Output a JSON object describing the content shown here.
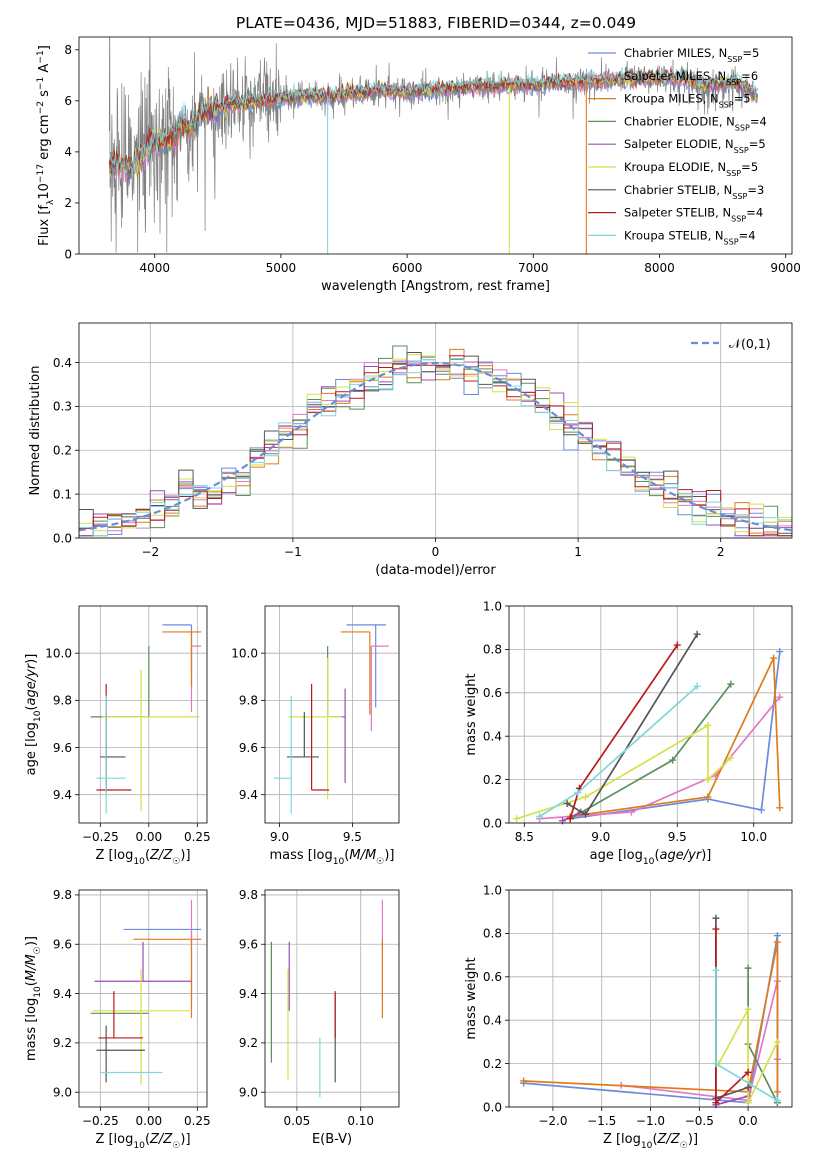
{
  "title": "PLATE=0436, MJD=51883, FIBERID=0344, z=0.049",
  "colors": {
    "Chabrier MILES": "#6a8ddb",
    "Salpeter MILES": "#e377c2",
    "Kroupa MILES": "#e07b1a",
    "Chabrier ELODIE": "#5a8f5a",
    "Salpeter ELODIE": "#9b4db5",
    "Kroupa ELODIE": "#d6e04a",
    "Chabrier STELIB": "#555555",
    "Salpeter STELIB": "#b81c1c",
    "Kroupa STELIB": "#7fd8dc"
  },
  "legend_spectrum": [
    {
      "model": "Chabrier MILES",
      "nssp": "5"
    },
    {
      "model": "Salpeter MILES",
      "nssp": "6"
    },
    {
      "model": "Kroupa MILES",
      "nssp": "5"
    },
    {
      "model": "Chabrier ELODIE",
      "nssp": "4"
    },
    {
      "model": "Salpeter ELODIE",
      "nssp": "5"
    },
    {
      "model": "Kroupa ELODIE",
      "nssp": "5"
    },
    {
      "model": "Chabrier STELIB",
      "nssp": "3"
    },
    {
      "model": "Salpeter STELIB",
      "nssp": "4"
    },
    {
      "model": "Kroupa STELIB",
      "nssp": "4"
    }
  ],
  "chart_data": [
    {
      "id": "spectrum",
      "type": "line",
      "xlabel": "wavelength [Angstrom, rest frame]",
      "ylabel": "Flux [f_λ10^-17 erg cm^-2 s^-1 A^-1]",
      "xlim": [
        3400,
        9050
      ],
      "ylim": [
        0,
        8.5
      ],
      "xticks": [
        4000,
        5000,
        6000,
        7000,
        8000,
        9000
      ],
      "yticks": [
        0,
        2,
        4,
        6,
        8
      ],
      "data_color": "#808080",
      "continuum_knots": {
        "x": [
          3640,
          3700,
          3800,
          3900,
          4000,
          4100,
          4200,
          4300,
          4400,
          4600,
          4800,
          5000,
          5200,
          5400,
          5600,
          5800,
          6000,
          6200,
          6400,
          6600,
          6800,
          7000,
          7200,
          7400,
          7600,
          7800,
          8000,
          8200,
          8400,
          8600,
          8780
        ],
        "y": [
          3.4,
          3.6,
          3.3,
          3.9,
          4.4,
          4.4,
          5.0,
          5.0,
          5.6,
          5.8,
          6.0,
          6.1,
          6.2,
          6.15,
          6.3,
          6.4,
          6.35,
          6.45,
          6.5,
          6.55,
          6.6,
          6.65,
          6.7,
          6.75,
          6.8,
          6.85,
          6.9,
          6.85,
          6.6,
          6.75,
          6.2
        ]
      },
      "drops": [
        {
          "model": "Kroupa STELIB",
          "x": 5370
        },
        {
          "model": "Kroupa ELODIE",
          "x": 6810
        },
        {
          "model": "Kroupa MILES",
          "x": 7420
        }
      ],
      "legend": "upper right"
    },
    {
      "id": "residual-distribution",
      "type": "line",
      "xlabel": "(data-model)/error",
      "ylabel": "Normed distribution",
      "xlim": [
        -2.5,
        2.5
      ],
      "ylim": [
        0,
        0.49
      ],
      "xticks": [
        -2,
        -1,
        0,
        1,
        2
      ],
      "yticks": [
        0.0,
        0.1,
        0.2,
        0.3,
        0.4
      ],
      "grid": true,
      "reference": {
        "name": "𝒩(0,1)",
        "mean": 0,
        "sigma": 1,
        "color": "#6a8ddb"
      },
      "bin_width": 0.1,
      "legend": "upper right"
    },
    {
      "id": "age-vs-Z",
      "type": "scatter",
      "xlabel": "Z [log10(Z/Z☉)]",
      "ylabel": "age [log10(age/yr)]",
      "xlim": [
        -0.36,
        0.3
      ],
      "ylim": [
        9.28,
        10.2
      ],
      "xticks": [
        -0.25,
        0.0,
        0.25
      ],
      "yticks": [
        9.4,
        9.6,
        9.8,
        10.0
      ],
      "grid": true,
      "points": [
        {
          "model": "Chabrier MILES",
          "x": 0.22,
          "xerr": [
            0.15,
            0.0
          ],
          "y": 10.12,
          "yerr": [
            0.2,
            0.0
          ]
        },
        {
          "model": "Salpeter MILES",
          "x": 0.22,
          "xerr": [
            0.0,
            0.05
          ],
          "y": 10.03,
          "yerr": [
            0.28,
            0.0
          ]
        },
        {
          "model": "Kroupa MILES",
          "x": 0.22,
          "xerr": [
            0.15,
            0.05
          ],
          "y": 10.09,
          "yerr": [
            0.23,
            0.0
          ]
        },
        {
          "model": "Chabrier ELODIE",
          "x": 0.0,
          "xerr": [
            0.3,
            0.0
          ],
          "y": 9.73,
          "yerr": [
            0.0,
            0.3
          ]
        },
        {
          "model": "Salpeter ELODIE",
          "x": -0.05,
          "xerr": [
            0.0,
            0.0
          ],
          "y": 9.73,
          "yerr": [
            0.0,
            0.0
          ]
        },
        {
          "model": "Kroupa ELODIE",
          "x": -0.04,
          "xerr": [
            0.2,
            0.3
          ],
          "y": 9.73,
          "yerr": [
            0.4,
            0.2
          ]
        },
        {
          "model": "Chabrier STELIB",
          "x": -0.22,
          "xerr": [
            0.03,
            0.1
          ],
          "y": 9.56,
          "yerr": [
            0.15,
            0.19
          ]
        },
        {
          "model": "Salpeter STELIB",
          "x": -0.22,
          "xerr": [
            0.05,
            0.13
          ],
          "y": 9.42,
          "yerr": [
            0.0,
            0.45
          ]
        },
        {
          "model": "Kroupa STELIB",
          "x": -0.22,
          "xerr": [
            0.05,
            0.1
          ],
          "y": 9.47,
          "yerr": [
            0.15,
            0.35
          ]
        }
      ]
    },
    {
      "id": "age-vs-mass",
      "type": "scatter",
      "xlabel": "mass [log10(M/M☉)]",
      "ylabel": "",
      "xlim": [
        8.9,
        9.82
      ],
      "ylim": [
        9.28,
        10.2
      ],
      "xticks": [
        9.0,
        9.5
      ],
      "yticks": [
        9.4,
        9.6,
        9.8,
        10.0
      ],
      "grid": true,
      "points": [
        {
          "model": "Chabrier MILES",
          "x": 9.66,
          "xerr": [
            0.2,
            0.07
          ],
          "y": 10.12,
          "yerr": [
            0.35,
            0.0
          ]
        },
        {
          "model": "Salpeter MILES",
          "x": 9.63,
          "xerr": [
            0.0,
            0.12
          ],
          "y": 10.03,
          "yerr": [
            0.36,
            0.0
          ]
        },
        {
          "model": "Kroupa MILES",
          "x": 9.62,
          "xerr": [
            0.2,
            0.0
          ],
          "y": 10.09,
          "yerr": [
            0.35,
            0.0
          ]
        },
        {
          "model": "Chabrier ELODIE",
          "x": 9.33,
          "xerr": [
            0.0,
            0.0
          ],
          "y": 9.73,
          "yerr": [
            0.0,
            0.3
          ]
        },
        {
          "model": "Salpeter ELODIE",
          "x": 9.45,
          "xerr": [
            0.1,
            0.0
          ],
          "y": 9.73,
          "yerr": [
            0.28,
            0.12
          ]
        },
        {
          "model": "Kroupa ELODIE",
          "x": 9.33,
          "xerr": [
            0.27,
            0.1
          ],
          "y": 9.73,
          "yerr": [
            0.35,
            0.25
          ]
        },
        {
          "model": "Chabrier STELIB",
          "x": 9.17,
          "xerr": [
            0.12,
            0.1
          ],
          "y": 9.56,
          "yerr": [
            0.0,
            0.19
          ]
        },
        {
          "model": "Salpeter STELIB",
          "x": 9.22,
          "xerr": [
            0.0,
            0.12
          ],
          "y": 9.42,
          "yerr": [
            0.0,
            0.45
          ]
        },
        {
          "model": "Kroupa STELIB",
          "x": 9.08,
          "xerr": [
            0.12,
            0.0
          ],
          "y": 9.47,
          "yerr": [
            0.15,
            0.35
          ]
        }
      ]
    },
    {
      "id": "mass-weight-vs-age",
      "type": "line",
      "xlabel": "age [log10(age/yr)]",
      "ylabel": "mass weight",
      "xlim": [
        8.4,
        10.25
      ],
      "ylim": [
        0,
        1.0
      ],
      "xticks": [
        8.5,
        9.0,
        9.5,
        10.0
      ],
      "yticks": [
        0.0,
        0.2,
        0.4,
        0.6,
        0.8,
        1.0
      ],
      "grid": true,
      "series": [
        {
          "model": "Chabrier MILES",
          "x": [
            8.8,
            9.7,
            10.05,
            10.17
          ],
          "y": [
            0.02,
            0.11,
            0.06,
            0.79
          ]
        },
        {
          "model": "Salpeter MILES",
          "x": [
            8.6,
            9.2,
            9.75,
            10.17
          ],
          "y": [
            0.02,
            0.05,
            0.22,
            0.58
          ]
        },
        {
          "model": "Kroupa MILES",
          "x": [
            8.8,
            9.7,
            10.13,
            10.17
          ],
          "y": [
            0.03,
            0.12,
            0.76,
            0.07
          ]
        },
        {
          "model": "Chabrier ELODIE",
          "x": [
            8.8,
            9.47,
            9.85
          ],
          "y": [
            0.02,
            0.29,
            0.64
          ]
        },
        {
          "model": "Salpeter ELODIE",
          "x": [
            8.75,
            8.87
          ],
          "y": [
            0.01,
            0.05
          ]
        },
        {
          "model": "Kroupa ELODIE",
          "x": [
            8.45,
            8.9,
            9.7,
            9.7,
            9.85
          ],
          "y": [
            0.02,
            0.12,
            0.45,
            0.2,
            0.3
          ]
        },
        {
          "model": "Chabrier STELIB",
          "x": [
            8.78,
            8.9,
            9.63
          ],
          "y": [
            0.09,
            0.04,
            0.87
          ]
        },
        {
          "model": "Salpeter STELIB",
          "x": [
            8.8,
            8.86,
            9.5
          ],
          "y": [
            0.02,
            0.16,
            0.82
          ]
        },
        {
          "model": "Kroupa STELIB",
          "x": [
            8.6,
            8.85,
            9.63
          ],
          "y": [
            0.03,
            0.14,
            0.63
          ]
        }
      ]
    },
    {
      "id": "mass-vs-Z",
      "type": "scatter",
      "xlabel": "Z [log10(Z/Z☉)]",
      "ylabel": "mass [log10(M/M☉)]",
      "xlim": [
        -0.36,
        0.3
      ],
      "ylim": [
        8.94,
        9.82
      ],
      "xticks": [
        -0.25,
        0.0,
        0.25
      ],
      "yticks": [
        9.0,
        9.2,
        9.4,
        9.6,
        9.8
      ],
      "grid": true,
      "points": [
        {
          "model": "Chabrier MILES",
          "x": 0.22,
          "xerr": [
            0.35,
            0.05
          ],
          "y": 9.66,
          "yerr": [
            0.05,
            0.0
          ]
        },
        {
          "model": "Salpeter MILES",
          "x": 0.22,
          "xerr": [
            0.0,
            0.0
          ],
          "y": 9.63,
          "yerr": [
            0.26,
            0.15
          ]
        },
        {
          "model": "Kroupa MILES",
          "x": 0.22,
          "xerr": [
            0.3,
            0.05
          ],
          "y": 9.62,
          "yerr": [
            0.32,
            0.0
          ]
        },
        {
          "model": "Chabrier ELODIE",
          "x": 0.0,
          "xerr": [
            0.3,
            0.0
          ],
          "y": 9.32,
          "yerr": [
            0.0,
            0.0
          ]
        },
        {
          "model": "Salpeter ELODIE",
          "x": -0.03,
          "xerr": [
            0.25,
            0.25
          ],
          "y": 9.45,
          "yerr": [
            0.0,
            0.16
          ]
        },
        {
          "model": "Kroupa ELODIE",
          "x": -0.04,
          "xerr": [
            0.25,
            0.25
          ],
          "y": 9.33,
          "yerr": [
            0.3,
            0.17
          ]
        },
        {
          "model": "Chabrier STELIB",
          "x": -0.22,
          "xerr": [
            0.05,
            0.2
          ],
          "y": 9.17,
          "yerr": [
            0.13,
            0.1
          ]
        },
        {
          "model": "Salpeter STELIB",
          "x": -0.18,
          "xerr": [
            0.08,
            0.15
          ],
          "y": 9.22,
          "yerr": [
            0.0,
            0.19
          ]
        },
        {
          "model": "Kroupa STELIB",
          "x": -0.2,
          "xerr": [
            0.05,
            0.27
          ],
          "y": 9.08,
          "yerr": [
            0.0,
            0.0
          ]
        }
      ]
    },
    {
      "id": "mass-vs-EBV",
      "type": "scatter",
      "xlabel": "E(B-V)",
      "ylabel": "",
      "xlim": [
        0.025,
        0.13
      ],
      "ylim": [
        8.94,
        9.82
      ],
      "xticks": [
        0.05,
        0.1
      ],
      "yticks": [
        9.0,
        9.2,
        9.4,
        9.6,
        9.8
      ],
      "grid": true,
      "points": [
        {
          "model": "Chabrier MILES",
          "x": 0.117,
          "xerr": [
            0.0,
            0.0
          ],
          "y": 9.66,
          "yerr": [
            0.0,
            0.0
          ]
        },
        {
          "model": "Salpeter MILES",
          "x": 0.117,
          "xerr": [
            0.0,
            0.0
          ],
          "y": 9.63,
          "yerr": [
            0.26,
            0.15
          ]
        },
        {
          "model": "Kroupa MILES",
          "x": 0.117,
          "xerr": [
            0.0,
            0.0
          ],
          "y": 9.62,
          "yerr": [
            0.32,
            0.0
          ]
        },
        {
          "model": "Chabrier ELODIE",
          "x": 0.03,
          "xerr": [
            0.0,
            0.0
          ],
          "y": 9.32,
          "yerr": [
            0.2,
            0.29
          ]
        },
        {
          "model": "Salpeter ELODIE",
          "x": 0.044,
          "xerr": [
            0.0,
            0.0
          ],
          "y": 9.45,
          "yerr": [
            0.12,
            0.16
          ]
        },
        {
          "model": "Kroupa ELODIE",
          "x": 0.043,
          "xerr": [
            0.0,
            0.0
          ],
          "y": 9.33,
          "yerr": [
            0.28,
            0.17
          ]
        },
        {
          "model": "Chabrier STELIB",
          "x": 0.08,
          "xerr": [
            0.0,
            0.0
          ],
          "y": 9.17,
          "yerr": [
            0.13,
            0.23
          ]
        },
        {
          "model": "Salpeter STELIB",
          "x": 0.08,
          "xerr": [
            0.0,
            0.0
          ],
          "y": 9.22,
          "yerr": [
            0.0,
            0.19
          ]
        },
        {
          "model": "Kroupa STELIB",
          "x": 0.068,
          "xerr": [
            0.0,
            0.0
          ],
          "y": 9.08,
          "yerr": [
            0.1,
            0.14
          ]
        }
      ]
    },
    {
      "id": "mass-weight-vs-Z",
      "type": "line",
      "xlabel": "Z [log10(Z/Z☉)]",
      "ylabel": "mass weight",
      "xlim": [
        -2.45,
        0.45
      ],
      "ylim": [
        0,
        1.0
      ],
      "xticks": [
        -2.0,
        -1.5,
        -1.0,
        -0.5,
        0.0
      ],
      "yticks": [
        0.0,
        0.2,
        0.4,
        0.6,
        0.8,
        1.0
      ],
      "grid": true,
      "series": [
        {
          "model": "Chabrier MILES",
          "x": [
            -2.3,
            0.0,
            0.3,
            0.3
          ],
          "y": [
            0.11,
            0.02,
            0.79,
            0.02
          ]
        },
        {
          "model": "Salpeter MILES",
          "x": [
            -1.3,
            0.0,
            0.3,
            0.3
          ],
          "y": [
            0.1,
            0.03,
            0.58,
            0.22
          ]
        },
        {
          "model": "Kroupa MILES",
          "x": [
            -2.3,
            0.0,
            0.3,
            0.3
          ],
          "y": [
            0.12,
            0.07,
            0.76,
            0.07
          ]
        },
        {
          "model": "Chabrier ELODIE",
          "x": [
            0.0,
            0.0,
            0.3
          ],
          "y": [
            0.64,
            0.29,
            0.02
          ]
        },
        {
          "model": "Salpeter ELODIE",
          "x": [
            -0.33,
            0.0
          ],
          "y": [
            0.01,
            0.05
          ]
        },
        {
          "model": "Kroupa ELODIE",
          "x": [
            -0.3,
            0.0,
            0.0,
            0.3
          ],
          "y": [
            0.2,
            0.45,
            0.02,
            0.3
          ]
        },
        {
          "model": "Chabrier STELIB",
          "x": [
            -0.33,
            -0.33,
            0.0
          ],
          "y": [
            0.87,
            0.04,
            0.09
          ]
        },
        {
          "model": "Salpeter STELIB",
          "x": [
            -0.33,
            -0.33,
            0.0
          ],
          "y": [
            0.82,
            0.02,
            0.16
          ]
        },
        {
          "model": "Kroupa STELIB",
          "x": [
            -0.33,
            -0.33,
            0.3
          ],
          "y": [
            0.63,
            0.2,
            0.03
          ]
        }
      ]
    }
  ]
}
